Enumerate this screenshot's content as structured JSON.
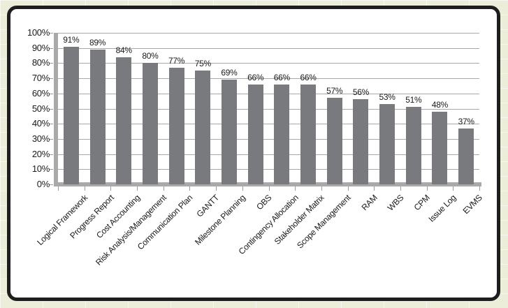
{
  "chart_data": {
    "type": "bar",
    "categories": [
      "Logical Framework",
      "Progress Report",
      "Cost Accounting",
      "Risk Analysis/Management",
      "Communication Plan",
      "GANTT",
      "Milestone Planning",
      "OBS",
      "Contingency Allocation",
      "Stakeholder Matrix",
      "Scope Management",
      "RAM",
      "WBS",
      "CPM",
      "Issue Log",
      "EVMS"
    ],
    "values": [
      91,
      89,
      84,
      80,
      77,
      75,
      69,
      66,
      66,
      66,
      57,
      56,
      53,
      51,
      48,
      37
    ],
    "data_labels": [
      "91%",
      "89%",
      "84%",
      "80%",
      "77%",
      "75%",
      "69%",
      "66%",
      "66%",
      "66%",
      "57%",
      "56%",
      "53%",
      "51%",
      "48%",
      "37%"
    ],
    "y_ticks": [
      "100%",
      "90%",
      "80%",
      "70%",
      "60%",
      "50%",
      "40%",
      "30%",
      "20%",
      "10%",
      "0%"
    ],
    "ylim": [
      0,
      100
    ],
    "title": "",
    "xlabel": "",
    "ylabel": "",
    "grid": "horizontal",
    "legend": "none",
    "x_label_rotation_deg": -45,
    "colors": {
      "bar": "#797a7e",
      "gridline": "#a9a9a9",
      "axis": "#a9a9a9",
      "tick": "#9a9a9a",
      "text": "#1a1a1a",
      "frame_border": "#1e1e1e",
      "frame_background": "#ffffff",
      "page_background": "#edeeda"
    }
  }
}
